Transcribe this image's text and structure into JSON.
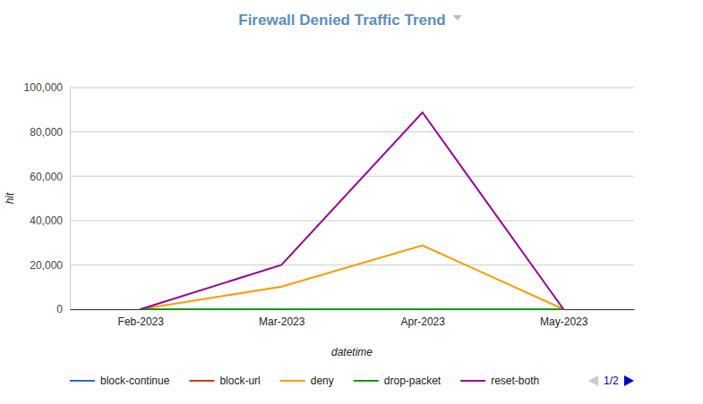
{
  "chart_data": {
    "type": "line",
    "title": "Firewall Denied Traffic Trend",
    "x_label": "datetime",
    "y_label": "hit",
    "categories": [
      "Feb-2023",
      "Mar-2023",
      "Apr-2023",
      "May-2023"
    ],
    "series": [
      {
        "name": "block-continue",
        "color": "#3366cc",
        "values": [
          0,
          0,
          0,
          0
        ]
      },
      {
        "name": "block-url",
        "color": "#dc3912",
        "values": [
          0,
          0,
          0,
          0
        ]
      },
      {
        "name": "deny",
        "color": "#ff9900",
        "values": [
          0,
          10200,
          28800,
          0
        ]
      },
      {
        "name": "drop-packet",
        "color": "#109618",
        "values": [
          0,
          0,
          0,
          0
        ]
      },
      {
        "name": "reset-both",
        "color": "#990099",
        "values": [
          0,
          20000,
          88800,
          0
        ]
      }
    ],
    "ylim": [
      0,
      100000
    ],
    "yticks": [
      0,
      {
        "value": 20000,
        "label": "20,000"
      },
      {
        "value": 40000,
        "label": "40,000"
      },
      {
        "value": 60000,
        "label": "60,000"
      },
      {
        "value": 80000,
        "label": "80,000"
      },
      {
        "value": 100000,
        "label": "100,000"
      }
    ],
    "grid": true,
    "legend": "bottom",
    "legend_page_label": "1/2"
  }
}
